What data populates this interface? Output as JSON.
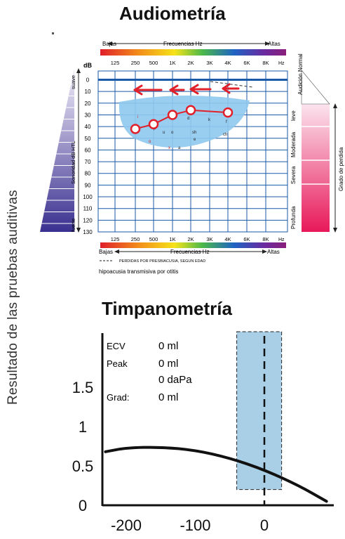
{
  "side_label": "Resultado de las  pruebas auditivas",
  "audiometry": {
    "title": "Audiometría",
    "freq_top": {
      "low": "Bajas",
      "mid": "Frecuencias Hz",
      "high": "Altas"
    },
    "freq_bottom": {
      "low": "Bajas",
      "mid": "Frecuencias Hz",
      "high": "Altas"
    },
    "db_unit": "dB",
    "hz_unit": "Hz",
    "x_ticks": [
      "125",
      "250",
      "500",
      "1K",
      "2K",
      "3K",
      "4K",
      "6K",
      "8K"
    ],
    "y_ticks": [
      "0",
      "10",
      "20",
      "30",
      "40",
      "50",
      "60",
      "70",
      "80",
      "90",
      "100",
      "110",
      "120",
      "130"
    ],
    "left_scale": {
      "label": "Sonoridad dB HTL",
      "top": "suave",
      "bottom": "fuerte"
    },
    "right_scale": {
      "label": "Grado de perdida"
    },
    "degrees": [
      "Audición Normal",
      "leve",
      "Moderada",
      "Severa",
      "Profunda"
    ],
    "legend_dashed": "PERDIDAS POR PRESBIACUSIA, SEGUN EDAD",
    "legend_text": "hipoacusia transmisiva por otitis",
    "colors": {
      "grid": "#1a5aa8",
      "curve": "#e0202a",
      "banana": "#8fc9ee",
      "left_scale": "#3a3090",
      "right_scale": "#e8185a"
    }
  },
  "chart_data": [
    {
      "type": "line",
      "title": "Audiometría",
      "xlabel": "Frecuencias Hz",
      "ylabel": "dB",
      "x": [
        "250",
        "500",
        "1K",
        "2K",
        "4K"
      ],
      "series": [
        {
          "values": [
            42,
            38,
            30,
            26,
            28
          ]
        }
      ],
      "ylim": [
        0,
        130
      ],
      "y_inverted": true,
      "grid": true
    },
    {
      "type": "line",
      "title": "Timpanometría",
      "x": [
        -230,
        -200,
        -150,
        -100,
        -50,
        0,
        50,
        90
      ],
      "series": [
        {
          "values": [
            0.68,
            0.73,
            0.74,
            0.7,
            0.6,
            0.45,
            0.25,
            0.05
          ]
        }
      ],
      "xlim": [
        -240,
        100
      ],
      "ylim": [
        0,
        2.0
      ],
      "x_ticks": [
        "-200",
        "-100",
        "0"
      ],
      "y_ticks": [
        "0",
        "0.5",
        "1",
        "1.5"
      ],
      "normal_region": {
        "x": [
          -40,
          25
        ],
        "y": [
          0.2,
          2.2
        ]
      },
      "peak_line_x": 0
    }
  ],
  "tympanometry": {
    "title": "Timpanometría",
    "readouts": [
      {
        "label": "ECV",
        "value": "0 ml"
      },
      {
        "label": "Peak",
        "value": "0 ml"
      },
      {
        "label": "",
        "value": "0 daPa"
      },
      {
        "label": "Grad:",
        "value": "0 ml"
      }
    ],
    "colors": {
      "region": "#a8cfe6",
      "curve": "#111111"
    }
  }
}
